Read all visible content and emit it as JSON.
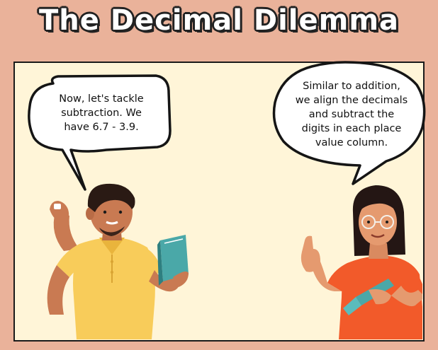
{
  "title": "The Decimal Dilemma",
  "left_bubble": {
    "lines": [
      "Now, let's tackle",
      "subtraction. We",
      "have 6.7 - 3.9."
    ]
  },
  "right_bubble": {
    "lines": [
      "Similar to addition,",
      "we align the decimals",
      "and subtract the",
      "digits in each place",
      "value column."
    ]
  },
  "colors": {
    "background": "#eab29a",
    "panel": "#fff5d8",
    "man_shirt": "#f8cc5a",
    "book": "#4aa8a8",
    "woman_shirt": "#f25a2a",
    "skin": "#c97a52"
  }
}
